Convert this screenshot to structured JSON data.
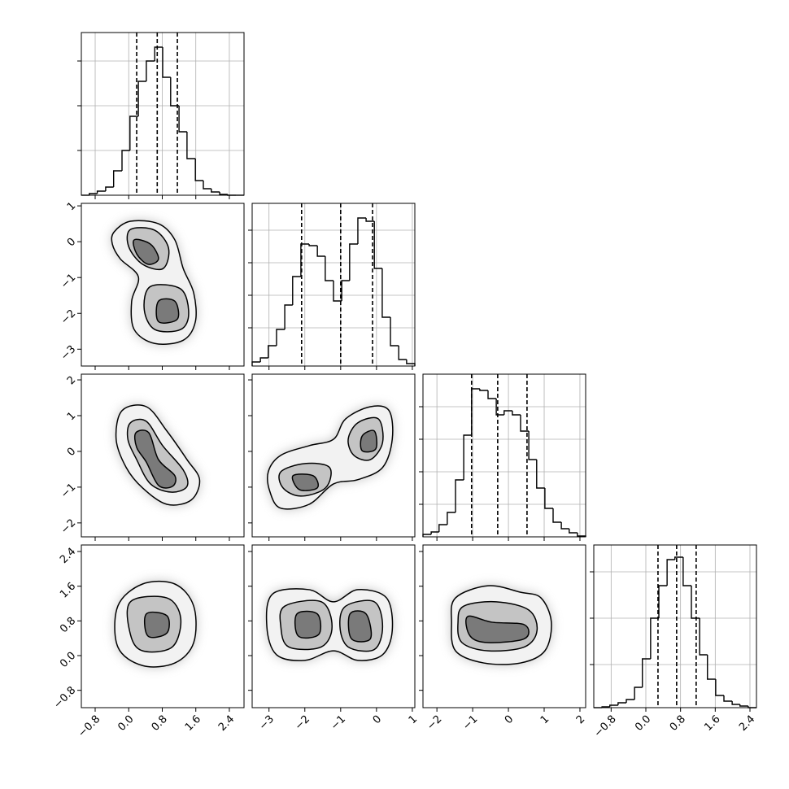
{
  "chart_data": {
    "type": "corner",
    "hist_grid": true,
    "params": [
      {
        "lim": [
          -1.13,
          2.75
        ],
        "ticks": [
          {
            "value": -0.8,
            "label": "−0.8"
          },
          {
            "value": 0,
            "label": "0.0"
          },
          0.8,
          1.6,
          2.4
        ],
        "quantiles": [
          0.19,
          0.68,
          1.16
        ],
        "bins": [
          -1.13,
          -0.94,
          -0.75,
          -0.55,
          -0.36,
          -0.16,
          0.03,
          0.23,
          0.42,
          0.62,
          0.81,
          1.0,
          1.2,
          1.39,
          1.59,
          1.78,
          1.97,
          2.17,
          2.36,
          2.56,
          2.75
        ],
        "counts": [
          0,
          2,
          5,
          10,
          30,
          55,
          97,
          140,
          165,
          182,
          145,
          110,
          78,
          45,
          18,
          8,
          4,
          1,
          0,
          0
        ],
        "hist_ylim": [
          0,
          200
        ],
        "hist_yticks": [
          55,
          110,
          165
        ]
      },
      {
        "lim": [
          -3.47,
          1.07
        ],
        "ticks": [
          {
            "value": -3,
            "label": "−3"
          },
          {
            "value": -2,
            "label": "−2"
          },
          {
            "value": -1,
            "label": "−1"
          },
          0,
          1
        ],
        "quantiles": [
          -2.09,
          -1.0,
          -0.11
        ],
        "bins": [
          -3.47,
          -3.24,
          -3.02,
          -2.79,
          -2.56,
          -2.34,
          -2.11,
          -1.88,
          -1.65,
          -1.43,
          -1.2,
          -0.97,
          -0.75,
          -0.52,
          -0.29,
          -0.06,
          0.16,
          0.39,
          0.62,
          0.84,
          1.07
        ],
        "counts": [
          5,
          10,
          25,
          45,
          75,
          110,
          150,
          148,
          135,
          105,
          80,
          105,
          150,
          182,
          178,
          120,
          60,
          25,
          8,
          3
        ],
        "hist_ylim": [
          0,
          200
        ],
        "hist_yticks": [
          47,
          87,
          127,
          167
        ]
      },
      {
        "lim": [
          -2.39,
          2.16
        ],
        "ticks": [
          {
            "value": -2,
            "label": "−2"
          },
          {
            "value": -1,
            "label": "−1"
          },
          0,
          1,
          2
        ],
        "quantiles": [
          -1.03,
          -0.3,
          0.52
        ],
        "bins": [
          -2.39,
          -2.16,
          -1.94,
          -1.71,
          -1.48,
          -1.25,
          -1.03,
          -0.8,
          -0.57,
          -0.34,
          -0.12,
          0.11,
          0.34,
          0.57,
          0.79,
          1.02,
          1.25,
          1.48,
          1.7,
          1.93,
          2.16
        ],
        "counts": [
          3,
          6,
          15,
          30,
          70,
          125,
          182,
          180,
          170,
          150,
          155,
          150,
          130,
          95,
          60,
          35,
          18,
          10,
          5,
          1
        ],
        "hist_ylim": [
          0,
          200
        ],
        "hist_yticks": [
          40,
          80,
          120,
          160
        ]
      },
      {
        "lim": [
          -1.2,
          2.55
        ],
        "ticks": [
          {
            "value": -0.8,
            "label": "−0.8"
          },
          {
            "value": 0,
            "label": "0.0"
          },
          0.8,
          1.6,
          2.4
        ],
        "quantiles": [
          0.28,
          0.71,
          1.16
        ],
        "bins": [
          -1.2,
          -1.01,
          -0.83,
          -0.64,
          -0.45,
          -0.26,
          -0.08,
          0.11,
          0.3,
          0.49,
          0.67,
          0.86,
          1.05,
          1.24,
          1.42,
          1.61,
          1.8,
          1.99,
          2.17,
          2.36,
          2.55
        ],
        "counts": [
          0,
          1,
          3,
          6,
          10,
          25,
          60,
          110,
          150,
          182,
          185,
          150,
          110,
          65,
          35,
          15,
          8,
          4,
          2,
          0
        ],
        "hist_ylim": [
          0,
          200
        ],
        "hist_yticks": [
          53,
          110,
          167
        ]
      }
    ],
    "panels": [
      {
        "contours": [
          {
            "x": [
              -0.35,
              0.04,
              0.71,
              1.1,
              1.3,
              1.55,
              1.59,
              1.3,
              0.62,
              0.13,
              0.07,
              0.23,
              -0.2,
              -0.39
            ],
            "y": [
              0.27,
              0.57,
              0.5,
              0.05,
              -0.75,
              -1.43,
              -2.23,
              -2.75,
              -2.84,
              -2.45,
              -1.66,
              -0.98,
              -0.48,
              -0.07
            ]
          },
          {
            "x": [
              0.04,
              0.62,
              0.95,
              0.82,
              0.33,
              0.0
            ],
            "y": [
              0.34,
              0.32,
              -0.18,
              -0.75,
              -0.63,
              -0.14
            ]
          },
          {
            "x": [
              0.52,
              1.24,
              1.43,
              1.24,
              0.62,
              0.37
            ],
            "y": [
              -1.25,
              -1.32,
              -2.0,
              -2.45,
              -2.45,
              -1.89
            ]
          },
          {
            "x": [
              0.13,
              0.52,
              0.71,
              0.46,
              0.19
            ],
            "y": [
              0.05,
              -0.07,
              -0.48,
              -0.63,
              -0.34
            ]
          },
          {
            "x": [
              0.71,
              1.1,
              1.16,
              0.71
            ],
            "y": [
              -1.66,
              -1.66,
              -2.16,
              -2.23
            ]
          }
        ]
      },
      {
        "contours": [
          {
            "x": [
              -0.16,
              0.42,
              0.91,
              1.39,
              1.69,
              1.49,
              0.91,
              0.33,
              -0.06,
              -0.3
            ],
            "y": [
              1.14,
              1.25,
              0.57,
              -0.23,
              -0.79,
              -1.36,
              -1.48,
              -1.02,
              -0.45,
              0.34
            ]
          },
          {
            "x": [
              0.04,
              0.42,
              0.81,
              1.3,
              1.39,
              1.01,
              0.52,
              0.19,
              -0.02
            ],
            "y": [
              0.8,
              0.84,
              0.16,
              -0.52,
              -0.98,
              -1.14,
              -0.91,
              -0.23,
              0.34
            ]
          },
          {
            "x": [
              0.17,
              0.48,
              0.71,
              1.1,
              1.04,
              0.71,
              0.42,
              0.19
            ],
            "y": [
              0.52,
              0.52,
              -0.23,
              -0.68,
              -0.98,
              -0.95,
              -0.3,
              0.11
            ]
          }
        ]
      },
      {
        "contours": [
          {
            "x": [
              -3.02,
              -2.67,
              -1.88,
              -1.2,
              -0.86,
              -0.17,
              0.35,
              0.44,
              0.17,
              -0.52,
              -1.2,
              -1.88,
              -2.67,
              -2.97
            ],
            "y": [
              -0.57,
              -0.11,
              0.16,
              0.34,
              0.91,
              1.25,
              1.14,
              0.34,
              -0.45,
              -0.79,
              -0.91,
              -1.48,
              -1.59,
              -1.14
            ]
          },
          {
            "x": [
              -2.67,
              -1.99,
              -1.31,
              -1.42,
              -2.11,
              -2.61
            ],
            "y": [
              -0.57,
              -0.34,
              -0.45,
              -1.02,
              -1.25,
              -1.02
            ]
          },
          {
            "x": [
              -0.52,
              0.05,
              0.17,
              -0.17,
              -0.63,
              -0.79
            ],
            "y": [
              0.8,
              0.91,
              0.25,
              -0.23,
              -0.11,
              0.34
            ]
          },
          {
            "x": [
              -2.33,
              -1.77,
              -1.65,
              -2.15
            ],
            "y": [
              -0.68,
              -0.68,
              -1.02,
              -1.07
            ]
          },
          {
            "x": [
              -0.4,
              -0.06,
              -0.02,
              -0.4
            ],
            "y": [
              0.43,
              0.57,
              0.07,
              0.02
            ]
          }
        ]
      },
      {
        "contours": [
          {
            "x": [
              -0.26,
              0.33,
              1.1,
              1.55,
              1.55,
              1.1,
              0.33,
              -0.26
            ],
            "y": [
              1.14,
              1.65,
              1.65,
              1.14,
              0.3,
              -0.17,
              -0.23,
              0.2
            ]
          },
          {
            "x": [
              0.04,
              0.91,
              1.24,
              1.04,
              0.33,
              0.04
            ],
            "y": [
              1.24,
              1.33,
              0.86,
              0.2,
              0.11,
              0.49
            ]
          },
          {
            "x": [
              0.42,
              0.91,
              0.91,
              0.46
            ],
            "y": [
              0.96,
              0.92,
              0.52,
              0.45
            ]
          }
        ]
      },
      {
        "contours": [
          {
            "x": [
              -2.9,
              -1.88,
              -1.2,
              -0.52,
              0.28,
              0.44,
              0.17,
              -0.52,
              -1.2,
              -2.0,
              -2.79,
              -3.06
            ],
            "y": [
              1.42,
              1.52,
              1.24,
              1.52,
              1.33,
              0.58,
              0.02,
              -0.11,
              0.11,
              -0.11,
              0.02,
              0.67
            ]
          },
          {
            "x": [
              -2.56,
              -1.54,
              -1.24,
              -1.54,
              -2.45,
              -2.67
            ],
            "y": [
              1.14,
              1.24,
              0.67,
              0.2,
              0.2,
              0.67
            ]
          },
          {
            "x": [
              -0.86,
              -0.06,
              0.17,
              -0.06,
              -0.79,
              -1.02
            ],
            "y": [
              1.14,
              1.24,
              0.67,
              0.14,
              0.2,
              0.67
            ]
          },
          {
            "x": [
              -2.22,
              -1.65,
              -1.61,
              -2.18
            ],
            "y": [
              0.96,
              0.96,
              0.49,
              0.45
            ]
          },
          {
            "x": [
              -0.74,
              -0.29,
              -0.17,
              -0.7
            ],
            "y": [
              0.96,
              0.96,
              0.39,
              0.39
            ]
          }
        ]
      },
      {
        "contours": [
          {
            "x": [
              -1.48,
              -0.57,
              0.34,
              0.91,
              1.2,
              1.02,
              0.34,
              -0.69,
              -1.48,
              -1.59
            ],
            "y": [
              1.33,
              1.61,
              1.46,
              1.33,
              0.77,
              0.11,
              -0.17,
              -0.17,
              0.11,
              0.77
            ]
          },
          {
            "x": [
              -1.25,
              -0.34,
              0.57,
              0.8,
              0.45,
              -0.57,
              -1.3,
              -1.41
            ],
            "y": [
              1.14,
              1.24,
              1.05,
              0.58,
              0.2,
              0.11,
              0.3,
              0.77
            ]
          },
          {
            "x": [
              -1.14,
              -0.46,
              0.45,
              0.45,
              -0.57,
              -1.07
            ],
            "y": [
              0.9,
              0.77,
              0.71,
              0.39,
              0.3,
              0.45
            ]
          }
        ]
      }
    ]
  }
}
